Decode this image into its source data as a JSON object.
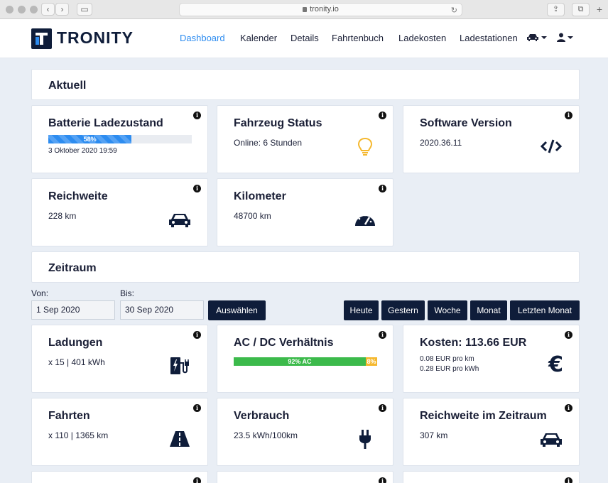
{
  "browser": {
    "url": "tronity.io"
  },
  "header": {
    "logo_text": "TRONITY",
    "nav": [
      "Dashboard",
      "Kalender",
      "Details",
      "Fahrtenbuch",
      "Ladekosten",
      "Ladestationen"
    ]
  },
  "aktuell": {
    "title": "Aktuell",
    "battery": {
      "title": "Batterie Ladezustand",
      "percent_label": "58%",
      "percent": 58,
      "date": "3 Oktober 2020 19:59"
    },
    "status": {
      "title": "Fahrzeug Status",
      "value": "Online: 6 Stunden"
    },
    "software": {
      "title": "Software Version",
      "value": "2020.36.11"
    },
    "range": {
      "title": "Reichweite",
      "value": "228 km"
    },
    "km": {
      "title": "Kilometer",
      "value": "48700 km"
    }
  },
  "zeitraum": {
    "title": "Zeitraum",
    "from_label": "Von:",
    "from_value": "1 Sep 2020",
    "to_label": "Bis:",
    "to_value": "30 Sep 2020",
    "select_button": "Auswählen",
    "quick_buttons": [
      "Heute",
      "Gestern",
      "Woche",
      "Monat",
      "Letzten Monat"
    ]
  },
  "stats": {
    "ladungen": {
      "title": "Ladungen",
      "value": "x 15 | 401 kWh"
    },
    "acdc": {
      "title": "AC / DC Verhältnis",
      "ac_label": "92% AC",
      "dc_label": "8%",
      "ac_percent": 92
    },
    "kosten": {
      "title": "Kosten: 113.66 EUR",
      "line1": "0.08 EUR pro km",
      "line2": "0.28 EUR pro kWh"
    },
    "fahrten": {
      "title": "Fahrten",
      "value": "x 110 | 1365 km"
    },
    "verbrauch": {
      "title": "Verbrauch",
      "value": "23.5 kWh/100km"
    },
    "reichweite_zeitraum": {
      "title": "Reichweite im Zeitraum",
      "value": "307 km"
    }
  },
  "colors": {
    "navy": "#0f1d3a",
    "accent": "#2d8cf0",
    "ac_green": "#3cba4b",
    "dc_yellow": "#f5b82e",
    "bulb_yellow": "#f5b82e"
  }
}
